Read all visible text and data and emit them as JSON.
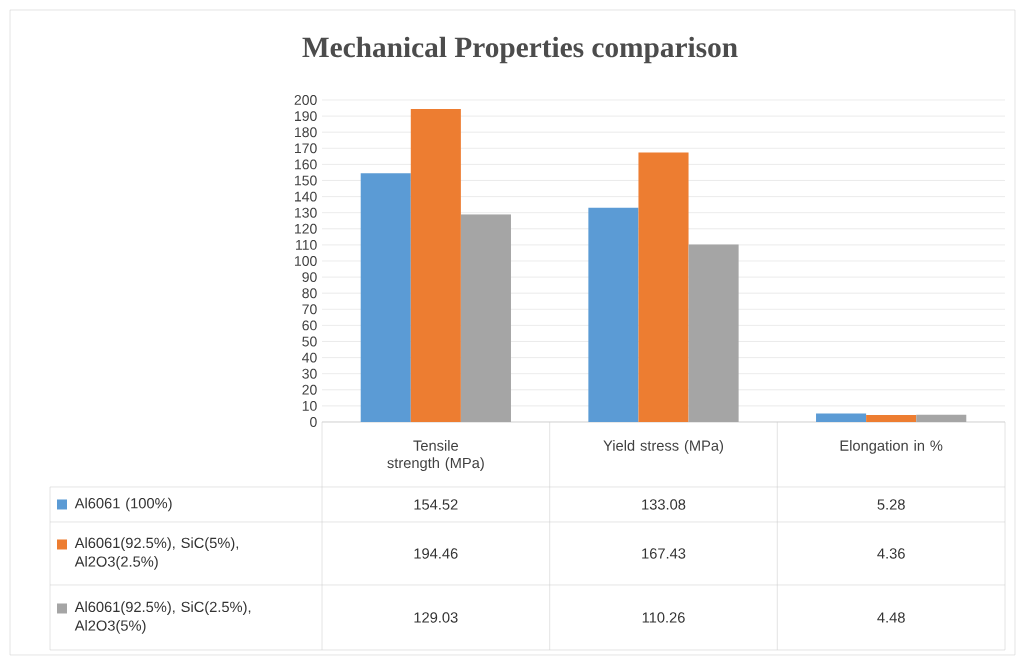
{
  "chart_data": {
    "type": "bar",
    "title": "Mechanical Properties comparison",
    "categories": [
      "Tensile strength (MPa)",
      "Yield stress (MPa)",
      "Elongation in %"
    ],
    "series": [
      {
        "name": "Al6061 (100%)",
        "color": "#5b9bd5",
        "values": [
          154.52,
          133.08,
          5.28
        ]
      },
      {
        "name": "Al6061(92.5%), SiC(5%), Al2O3(2.5%)",
        "color": "#ed7d31",
        "values": [
          194.46,
          167.43,
          4.36
        ]
      },
      {
        "name": "Al6061(92.5%), SiC(2.5%), Al2O3(5%)",
        "color": "#a5a5a5",
        "values": [
          129.03,
          110.26,
          4.48
        ]
      }
    ],
    "ylim": [
      0,
      200
    ],
    "yticks": [
      0,
      10,
      20,
      30,
      40,
      50,
      60,
      70,
      80,
      90,
      100,
      110,
      120,
      130,
      140,
      150,
      160,
      170,
      180,
      190,
      200
    ],
    "grid": "y",
    "legend": "bottom",
    "data_labels": true
  }
}
